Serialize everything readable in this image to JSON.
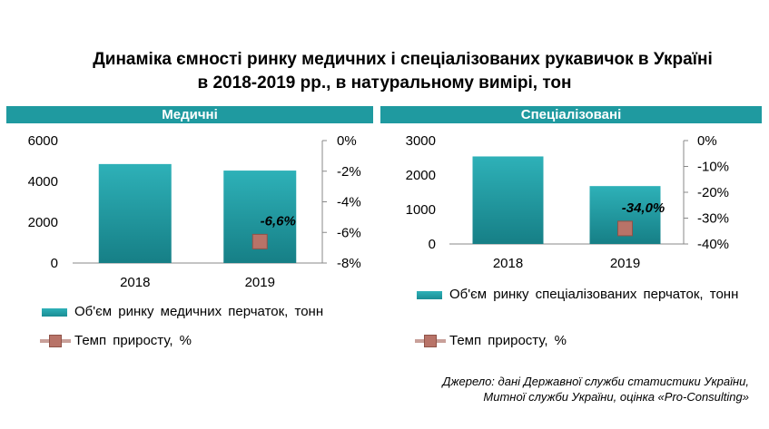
{
  "title_line1": "Динаміка ємності ринку медичних і спеціалізованих рукавичок в Україні",
  "title_line2": "в 2018-2019 рр., в натуральному вимірі, тон",
  "source_line1": "Джерело: дані Державної служби статистики України,",
  "source_line2": "Митної служби України, оцінка «Pro-Consulting»",
  "colors": {
    "band": "#1f9aa0",
    "bar_top": "#2eb1b8",
    "bar_bottom": "#167f86",
    "marker": "#b87368"
  },
  "chart_data": [
    {
      "type": "bar",
      "panel_title": "Медичні",
      "categories": [
        "2018",
        "2019"
      ],
      "series": [
        {
          "name": "Об'єм ринку медичних перчаток, тонн",
          "axis": "left",
          "values": [
            4850,
            4530
          ]
        },
        {
          "name": "Темп приросту, %",
          "axis": "right",
          "type": "line",
          "values": [
            null,
            -6.6
          ],
          "labels": [
            null,
            "-6,6%"
          ]
        }
      ],
      "ylim": [
        0,
        6000
      ],
      "yticks": [
        0,
        2000,
        4000,
        6000
      ],
      "ylim_right": [
        -8,
        0
      ],
      "yticks_right": [
        0,
        -2,
        -4,
        -6,
        -8
      ],
      "ytick_labels_right": [
        "0%",
        "-2%",
        "-4%",
        "-6%",
        "-8%"
      ]
    },
    {
      "type": "bar",
      "panel_title": "Спеціалізовані",
      "categories": [
        "2018",
        "2019"
      ],
      "series": [
        {
          "name": "Об'єм ринку спеціалізованих перчаток, тонн",
          "axis": "left",
          "values": [
            2540,
            1680
          ]
        },
        {
          "name": "Темп приросту, %",
          "axis": "right",
          "type": "line",
          "values": [
            null,
            -34.0
          ],
          "labels": [
            null,
            "-34,0%"
          ]
        }
      ],
      "ylim": [
        0,
        3000
      ],
      "yticks": [
        0,
        1000,
        2000,
        3000
      ],
      "ylim_right": [
        -40,
        0
      ],
      "yticks_right": [
        0,
        -10,
        -20,
        -30,
        -40
      ],
      "ytick_labels_right": [
        "0%",
        "-10%",
        "-20%",
        "-30%",
        "-40%"
      ]
    }
  ]
}
